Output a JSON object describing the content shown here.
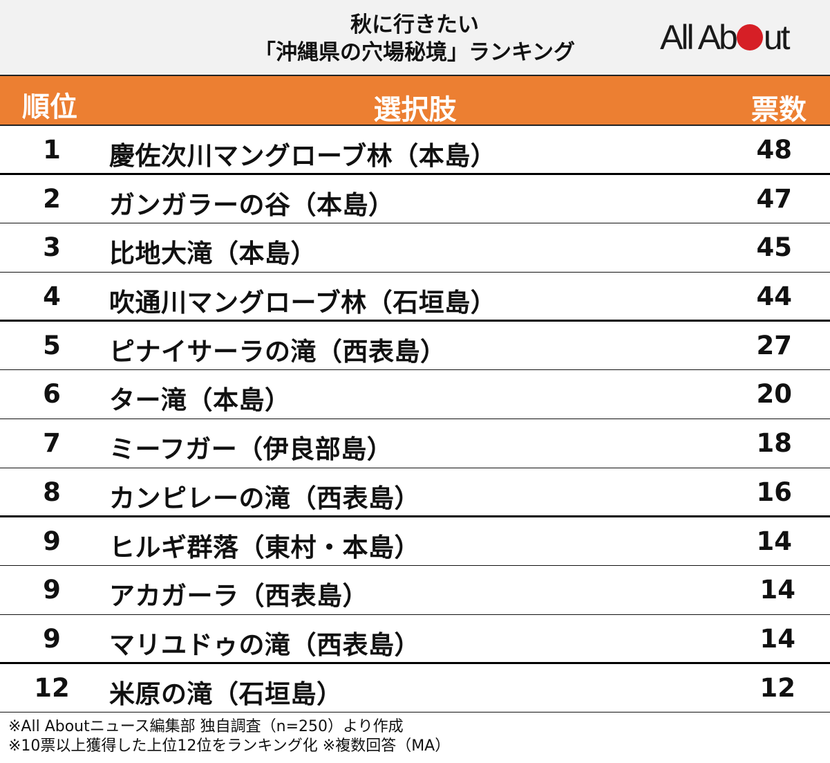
{
  "title": {
    "line1": "秋に行きたい",
    "line2": "「沖縄県の穴場秘境」ランキング"
  },
  "logo": {
    "text_before": "All Ab",
    "text_after": "ut",
    "dot_color": "#d61f26"
  },
  "table": {
    "header": {
      "rank": "順位",
      "choice": "選択肢",
      "votes": "票数",
      "background": "#ec7f32"
    },
    "rows": [
      {
        "rank": "1",
        "name": "慶佐次川マングローブ林（本島）",
        "votes": "48"
      },
      {
        "rank": "2",
        "name": "ガンガラーの谷（本島）",
        "votes": "47"
      },
      {
        "rank": "3",
        "name": "比地大滝（本島）",
        "votes": "45"
      },
      {
        "rank": "4",
        "name": "吹通川マングローブ林（石垣島）",
        "votes": "44"
      },
      {
        "rank": "5",
        "name": "ピナイサーラの滝（西表島）",
        "votes": "27"
      },
      {
        "rank": "6",
        "name": "ター滝（本島）",
        "votes": "20"
      },
      {
        "rank": "7",
        "name": "ミーフガー（伊良部島）",
        "votes": "18"
      },
      {
        "rank": "8",
        "name": "カンピレーの滝（西表島）",
        "votes": "16"
      },
      {
        "rank": "9",
        "name": "ヒルギ群落（東村・本島）",
        "votes": "14"
      },
      {
        "rank": "9",
        "name": "アカガーラ（西表島）",
        "votes": "14"
      },
      {
        "rank": "9",
        "name": "マリユドゥの滝（西表島）",
        "votes": "14"
      },
      {
        "rank": "12",
        "name": "米原の滝（石垣島）",
        "votes": "12"
      }
    ]
  },
  "footnotes": {
    "line1": "※All Aboutニュース編集部 独自調査（n=250）より作成",
    "line2": "※10票以上獲得した上位12位をランキング化 ※複数回答（MA）"
  }
}
